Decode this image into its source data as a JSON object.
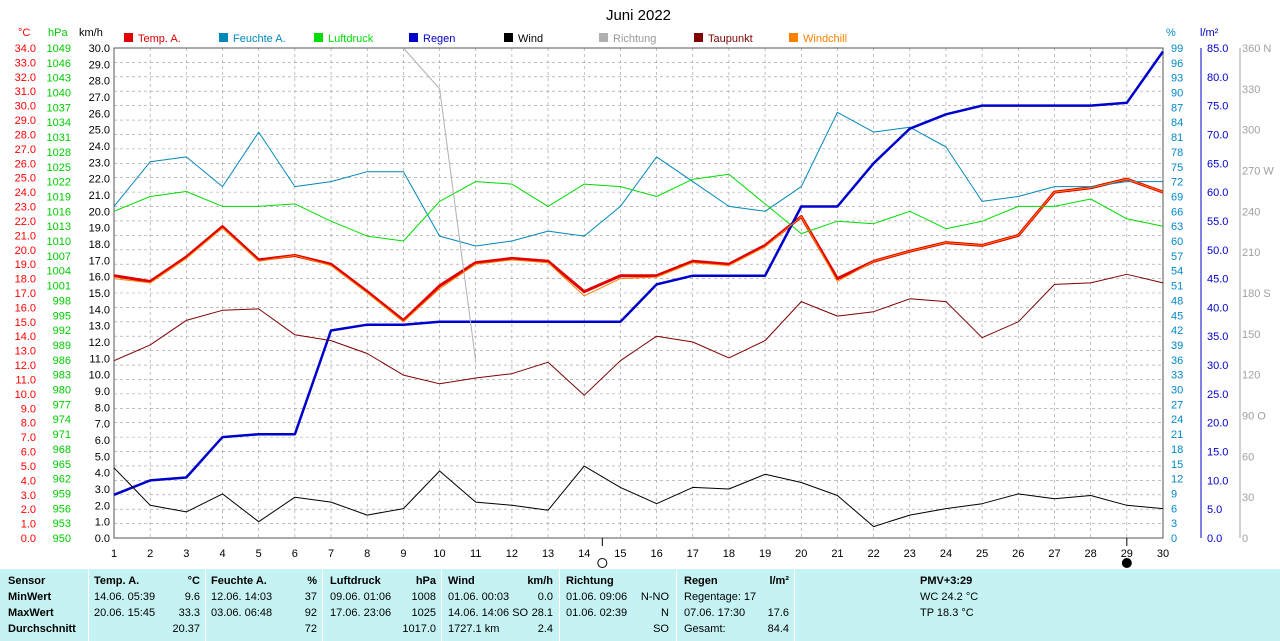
{
  "chart_data": {
    "type": "line",
    "title": "Juni 2022",
    "x": [
      1,
      2,
      3,
      4,
      5,
      6,
      7,
      8,
      9,
      10,
      11,
      12,
      13,
      14,
      15,
      16,
      17,
      18,
      19,
      20,
      21,
      22,
      23,
      24,
      25,
      26,
      27,
      28,
      29,
      30
    ],
    "axes": {
      "temp": {
        "unit": "°C",
        "min": 0,
        "max": 34,
        "step": 1,
        "color": "#ff0000"
      },
      "pressure": {
        "unit": "hPa",
        "min": 950,
        "max": 1049,
        "step": 3,
        "color": "#00cc00"
      },
      "wind": {
        "unit": "km/h",
        "min": 0,
        "max": 30,
        "step": 1,
        "color": "#000000"
      },
      "humidity": {
        "unit": "%",
        "min": 0,
        "max": 99,
        "step": 3,
        "color": "#0088cc"
      },
      "rain": {
        "unit": "l/m²",
        "min": 0,
        "max": 85,
        "step": 5,
        "color": "#0000cc"
      },
      "direction": {
        "unit": "",
        "min": 0,
        "max": 360,
        "step": 30,
        "color": "#a0a0a0",
        "labels": {
          "90": "90 O",
          "180": "180 S",
          "270": "270 W",
          "360": "360 N"
        }
      }
    },
    "series": [
      {
        "name": "Temp. A.",
        "axis": "temp",
        "color": "#e00000",
        "width": 3,
        "values": [
          18.2,
          17.8,
          19.5,
          21.6,
          19.3,
          19.6,
          19.0,
          17.1,
          15.1,
          17.5,
          19.1,
          19.4,
          19.2,
          17.1,
          18.2,
          18.2,
          19.2,
          19.0,
          20.3,
          22.3,
          18.0,
          19.2,
          19.9,
          20.5,
          20.3,
          21.0,
          24.0,
          24.3,
          24.9,
          24.0
        ]
      },
      {
        "name": "Feuchte A.",
        "axis": "humidity",
        "color": "#0088bb",
        "width": 1,
        "values": [
          67,
          76,
          77,
          71,
          82,
          71,
          72,
          74,
          74,
          61,
          59,
          60,
          62,
          61,
          67,
          77,
          72,
          67,
          66,
          71,
          86,
          82,
          83,
          79,
          68,
          69,
          71,
          71,
          72,
          72
        ]
      },
      {
        "name": "Luftdruck",
        "axis": "pressure",
        "color": "#00dd00",
        "width": 1,
        "values": [
          1016,
          1019,
          1020,
          1017,
          1017,
          1017.5,
          1014,
          1011,
          1010,
          1018,
          1022,
          1021.5,
          1017,
          1021.5,
          1021,
          1019,
          1022.5,
          1023.5,
          1017.5,
          1011.5,
          1014,
          1013.5,
          1016,
          1012.5,
          1014,
          1017,
          1017,
          1018.5,
          1014.5,
          1013
        ]
      },
      {
        "name": "Regen",
        "axis": "rain",
        "color": "#0000cc",
        "width": 2.5,
        "values": [
          7.5,
          10,
          10.5,
          17.5,
          18,
          18,
          36,
          37,
          37,
          37.5,
          37.5,
          37.5,
          37.5,
          37.5,
          37.5,
          44,
          45.5,
          45.5,
          45.5,
          57.5,
          57.5,
          65,
          71,
          73.5,
          75,
          75,
          75,
          75,
          75.5,
          84.4
        ]
      },
      {
        "name": "Wind",
        "axis": "wind",
        "color": "#000000",
        "width": 1,
        "values": [
          4.3,
          2.0,
          1.6,
          2.7,
          1.0,
          2.5,
          2.2,
          1.4,
          1.8,
          4.1,
          2.2,
          2.0,
          1.7,
          4.4,
          3.1,
          2.1,
          3.1,
          3.0,
          3.9,
          3.4,
          2.6,
          0.7,
          1.4,
          1.8,
          2.1,
          2.7,
          2.4,
          2.6,
          2.0,
          1.8
        ]
      },
      {
        "name": "Richtung",
        "axis": "direction",
        "color": "#b0b0b0",
        "width": 1,
        "values": [
          null,
          null,
          null,
          null,
          null,
          null,
          null,
          null,
          360,
          330,
          130,
          null,
          null,
          null,
          null,
          null,
          null,
          null,
          null,
          null,
          null,
          null,
          null,
          null,
          null,
          null,
          null,
          null,
          null,
          null
        ]
      },
      {
        "name": "Taupunkt",
        "axis": "temp",
        "color": "#800000",
        "width": 1,
        "values": [
          12.3,
          13.4,
          15.1,
          15.8,
          15.9,
          14.1,
          13.7,
          12.8,
          11.3,
          10.7,
          11.1,
          11.4,
          12.2,
          9.9,
          12.3,
          14.0,
          13.6,
          12.5,
          13.7,
          16.4,
          15.4,
          15.7,
          16.6,
          16.4,
          13.9,
          15.0,
          17.6,
          17.7,
          18.3,
          17.7
        ]
      },
      {
        "name": "Windchill",
        "axis": "temp",
        "color": "#ff8000",
        "width": 1,
        "values": [
          18.0,
          17.7,
          19.4,
          21.5,
          19.2,
          19.6,
          18.9,
          17.0,
          15.0,
          17.3,
          19.0,
          19.3,
          19.1,
          16.8,
          18.0,
          18.1,
          19.1,
          18.9,
          20.2,
          22.3,
          17.8,
          19.2,
          19.9,
          20.5,
          20.3,
          21.0,
          24.0,
          24.3,
          24.9,
          24.0
        ]
      }
    ],
    "moon": [
      {
        "day": 14.5,
        "phase": "new"
      },
      {
        "day": 29,
        "phase": "full"
      }
    ],
    "grid": true,
    "legend": "top"
  },
  "stats": {
    "labels": {
      "sensor": "Sensor",
      "min": "MinWert",
      "max": "MaxWert",
      "avg": "Durchschnitt"
    },
    "temp": {
      "title": "Temp. A.",
      "unit": "°C",
      "min_date": "14.06.  05:39",
      "min": "9.6",
      "max_date": "20.06.  15:45",
      "max": "33.3",
      "avg": "20.37"
    },
    "humidity": {
      "title": "Feuchte A.",
      "unit": "%",
      "min_date": "12.06.  14:03",
      "min": "37",
      "max_date": "03.06.  06:48",
      "max": "92",
      "avg": "72"
    },
    "pressure": {
      "title": "Luftdruck",
      "unit": "hPa",
      "min_date": "09.06.  01:06",
      "min": "1008",
      "max_date": "17.06.  23:06",
      "max": "1025",
      "avg": "1017.0"
    },
    "wind": {
      "title": "Wind",
      "unit": "km/h",
      "min_date": "01.06.  00:03",
      "min": "0.0",
      "max_date": "14.06.  14:06 SO",
      "max": "28.1",
      "avg_label": "1727.1 km",
      "avg": "2.4"
    },
    "direction": {
      "title": "Richtung",
      "min_date": "01.06.  09:06",
      "min": "N-NO",
      "max_date": "01.06.  02:39",
      "max": "N",
      "avg": "SO"
    },
    "rain": {
      "title": "Regen",
      "unit": "l/m²",
      "min_label": "Regentage: 17",
      "max_date": "07.06.  17:30",
      "max": "17.6",
      "avg_label": "Gesamt:",
      "avg": "84.4"
    },
    "pmv": {
      "title": "PMV+3:29",
      "wc": "WC 24.2 °C",
      "tp": "TP 18.3 °C"
    }
  }
}
